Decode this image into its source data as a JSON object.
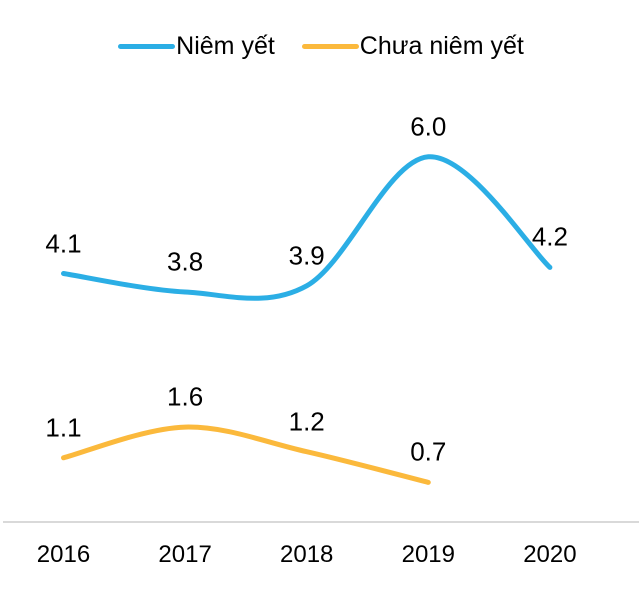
{
  "chart_data": {
    "type": "line",
    "line_style": "smooth",
    "title": "",
    "xlabel": "",
    "ylabel": "",
    "categories": [
      "2016",
      "2017",
      "2018",
      "2019",
      "2020"
    ],
    "series": [
      {
        "name": "Niêm yết",
        "color": "#2BAEE5",
        "values": [
          4.1,
          3.8,
          3.9,
          6.0,
          4.2
        ]
      },
      {
        "name": "Chưa niêm yết",
        "color": "#FBB93C",
        "values": [
          1.1,
          1.6,
          1.2,
          0.7,
          null
        ]
      }
    ],
    "ylim": [
      0,
      7
    ],
    "grid": false,
    "legend_position": "top",
    "data_labels": true,
    "axis_line_color": "#D9D9D9",
    "text_color": "#000000"
  }
}
